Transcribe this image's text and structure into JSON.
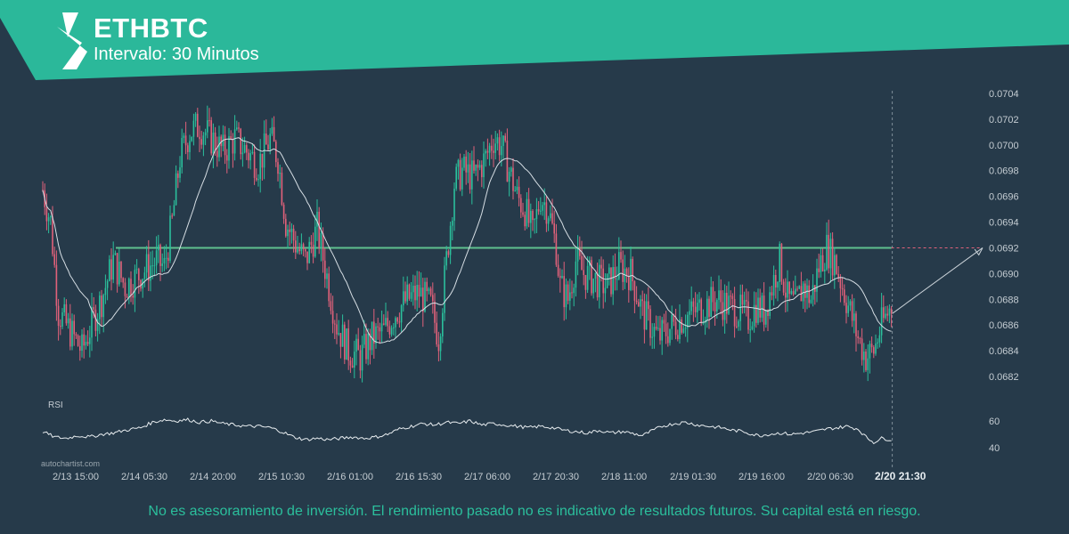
{
  "header": {
    "symbol": "ETHBTC",
    "interval": "Intervalo: 30 Minutos"
  },
  "watermark": "autochartist.com",
  "disclaimer": "No es asesoramiento de inversión. El rendimiento pasado no es indicativo de resultados futuros. Su capital está en riesgo.",
  "colors": {
    "background": "#263a4a",
    "accent": "#2bb89a",
    "up_candle": "#2bbf9c",
    "down_candle": "#e0617a",
    "moving_average": "#d6dee4",
    "level_line": "#5fc08f",
    "text": "#c4ccd2"
  },
  "chart_data": {
    "type": "candlestick",
    "title": "ETHBTC",
    "xlabel": "",
    "ylabel": "",
    "x_ticks": [
      "2/13 15:00",
      "2/14 05:30",
      "2/14 20:00",
      "2/15 10:30",
      "2/16 01:00",
      "2/16 15:30",
      "2/17 06:00",
      "2/17 20:30",
      "2/18 11:00",
      "2/19 01:30",
      "2/19 16:00",
      "2/20 06:30"
    ],
    "current_time_label": "2/20 21:30",
    "y_ticks": [
      "0.0682",
      "0.0684",
      "0.0686",
      "0.0688",
      "0.0690",
      "0.0692",
      "0.0694",
      "0.0696",
      "0.0698",
      "0.0700",
      "0.0702",
      "0.0704"
    ],
    "ylim": [
      0.0681,
      0.0704
    ],
    "level": 0.0692,
    "forecast_target": 0.0692,
    "price_path": [
      [
        0,
        0.06965
      ],
      [
        4,
        0.0694
      ],
      [
        8,
        0.0687
      ],
      [
        14,
        0.06855
      ],
      [
        20,
        0.0684
      ],
      [
        26,
        0.06865
      ],
      [
        30,
        0.0688
      ],
      [
        36,
        0.0691
      ],
      [
        42,
        0.0689
      ],
      [
        50,
        0.069
      ],
      [
        58,
        0.0691
      ],
      [
        62,
        0.06905
      ],
      [
        66,
        0.0694
      ],
      [
        70,
        0.0699
      ],
      [
        75,
        0.0701
      ],
      [
        80,
        0.07015
      ],
      [
        86,
        0.07005
      ],
      [
        92,
        0.06995
      ],
      [
        98,
        0.07005
      ],
      [
        104,
        0.06995
      ],
      [
        110,
        0.06985
      ],
      [
        116,
        0.07005
      ],
      [
        120,
        0.0699
      ],
      [
        124,
        0.0694
      ],
      [
        130,
        0.0692
      ],
      [
        134,
        0.0691
      ],
      [
        140,
        0.06935
      ],
      [
        146,
        0.0689
      ],
      [
        150,
        0.0686
      ],
      [
        156,
        0.0684
      ],
      [
        162,
        0.06835
      ],
      [
        168,
        0.0685
      ],
      [
        174,
        0.06855
      ],
      [
        180,
        0.0687
      ],
      [
        186,
        0.0688
      ],
      [
        192,
        0.06885
      ],
      [
        198,
        0.06875
      ],
      [
        202,
        0.0685
      ],
      [
        206,
        0.0691
      ],
      [
        210,
        0.0697
      ],
      [
        214,
        0.0698
      ],
      [
        220,
        0.06975
      ],
      [
        226,
        0.0699
      ],
      [
        230,
        0.07005
      ],
      [
        234,
        0.07
      ],
      [
        238,
        0.0698
      ],
      [
        242,
        0.0696
      ],
      [
        246,
        0.0695
      ],
      [
        250,
        0.0693
      ],
      [
        254,
        0.0696
      ],
      [
        258,
        0.0695
      ],
      [
        262,
        0.0692
      ],
      [
        264,
        0.0689
      ],
      [
        268,
        0.0688
      ],
      [
        272,
        0.0691
      ],
      [
        276,
        0.069
      ],
      [
        282,
        0.06895
      ],
      [
        288,
        0.0689
      ],
      [
        294,
        0.06905
      ],
      [
        300,
        0.069
      ],
      [
        306,
        0.0687
      ],
      [
        310,
        0.0686
      ],
      [
        314,
        0.0685
      ],
      [
        318,
        0.06855
      ],
      [
        322,
        0.0686
      ],
      [
        326,
        0.06865
      ],
      [
        332,
        0.0687
      ],
      [
        338,
        0.06875
      ],
      [
        344,
        0.0688
      ],
      [
        350,
        0.06875
      ],
      [
        356,
        0.0687
      ],
      [
        360,
        0.06865
      ],
      [
        364,
        0.06875
      ],
      [
        368,
        0.0687
      ],
      [
        372,
        0.0689
      ],
      [
        376,
        0.0691
      ],
      [
        380,
        0.0688
      ],
      [
        384,
        0.06875
      ],
      [
        388,
        0.0689
      ],
      [
        392,
        0.0688
      ],
      [
        396,
        0.06905
      ],
      [
        400,
        0.0692
      ],
      [
        404,
        0.0691
      ],
      [
        408,
        0.0689
      ],
      [
        412,
        0.0687
      ],
      [
        416,
        0.0685
      ],
      [
        420,
        0.06835
      ],
      [
        424,
        0.0684
      ],
      [
        428,
        0.0686
      ],
      [
        433,
        0.06875
      ]
    ],
    "rsi": {
      "label": "RSI",
      "ticks": [
        40,
        60
      ],
      "path": [
        [
          0,
          52
        ],
        [
          6,
          48
        ],
        [
          12,
          47
        ],
        [
          18,
          49
        ],
        [
          24,
          48
        ],
        [
          30,
          50
        ],
        [
          36,
          51
        ],
        [
          42,
          53
        ],
        [
          50,
          55
        ],
        [
          56,
          59
        ],
        [
          62,
          61
        ],
        [
          68,
          60
        ],
        [
          74,
          61
        ],
        [
          80,
          59
        ],
        [
          86,
          60
        ],
        [
          92,
          58
        ],
        [
          98,
          57
        ],
        [
          104,
          56
        ],
        [
          110,
          56
        ],
        [
          116,
          55
        ],
        [
          122,
          52
        ],
        [
          128,
          48
        ],
        [
          134,
          46
        ],
        [
          140,
          47
        ],
        [
          146,
          46
        ],
        [
          152,
          47
        ],
        [
          158,
          48
        ],
        [
          164,
          47
        ],
        [
          170,
          48
        ],
        [
          176,
          50
        ],
        [
          182,
          54
        ],
        [
          188,
          56
        ],
        [
          194,
          58
        ],
        [
          200,
          57
        ],
        [
          206,
          59
        ],
        [
          212,
          58
        ],
        [
          218,
          60
        ],
        [
          224,
          57
        ],
        [
          230,
          58
        ],
        [
          236,
          57
        ],
        [
          242,
          56
        ],
        [
          248,
          55
        ],
        [
          254,
          56
        ],
        [
          260,
          55
        ],
        [
          266,
          53
        ],
        [
          272,
          52
        ],
        [
          278,
          51
        ],
        [
          284,
          53
        ],
        [
          290,
          51
        ],
        [
          296,
          52
        ],
        [
          300,
          51
        ],
        [
          306,
          49
        ],
        [
          310,
          52
        ],
        [
          316,
          56
        ],
        [
          322,
          58
        ],
        [
          328,
          59
        ],
        [
          334,
          57
        ],
        [
          340,
          56
        ],
        [
          346,
          55
        ],
        [
          352,
          53
        ],
        [
          358,
          52
        ],
        [
          362,
          50
        ],
        [
          366,
          49
        ],
        [
          370,
          50
        ],
        [
          376,
          51
        ],
        [
          382,
          50
        ],
        [
          388,
          51
        ],
        [
          394,
          52
        ],
        [
          400,
          54
        ],
        [
          406,
          55
        ],
        [
          410,
          56
        ],
        [
          416,
          54
        ],
        [
          420,
          48
        ],
        [
          424,
          44
        ],
        [
          428,
          47
        ],
        [
          433,
          46
        ]
      ]
    }
  }
}
